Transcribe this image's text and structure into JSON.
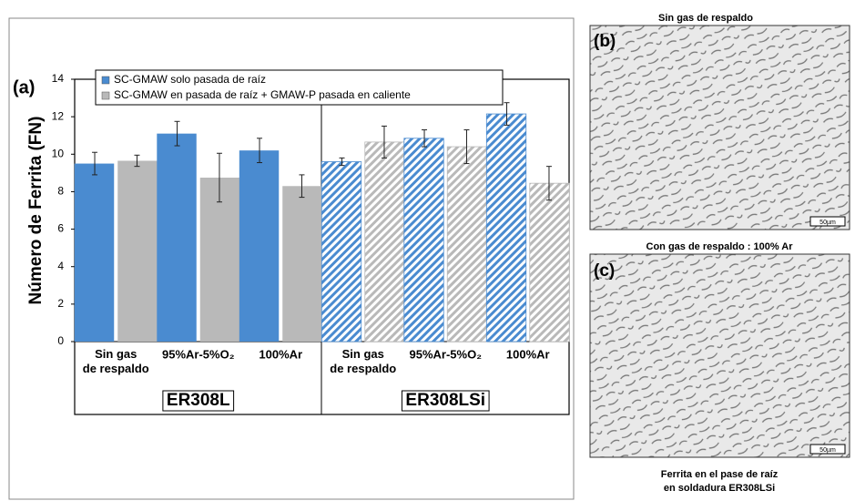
{
  "chart_data": {
    "type": "bar",
    "panel_label": "(a)",
    "ylabel": "Número de Ferrita (FN)",
    "categories": [
      "Sin gas de respaldo",
      "95%Ar-5%O₂",
      "100%Ar",
      "Sin gas de respaldo",
      "95%Ar-5%O₂",
      "100%Ar"
    ],
    "groups": [
      {
        "name": "ER308L",
        "hatched": false
      },
      {
        "name": "ER308LSi",
        "hatched": true
      }
    ],
    "series": [
      {
        "name": "SC-GMAW solo pasada de raíz",
        "color": "#4a8bd0",
        "values": [
          9.5,
          11.1,
          10.2,
          9.6,
          10.85,
          12.15
        ],
        "errors": [
          0.6,
          0.65,
          0.65,
          0.2,
          0.45,
          0.6
        ]
      },
      {
        "name": "SC-GMAW en pasada de raíz + GMAW-P pasada en caliente",
        "color": "#b9b9b9",
        "values": [
          9.65,
          8.75,
          8.3,
          10.65,
          10.4,
          8.45
        ],
        "errors": [
          0.3,
          1.3,
          0.6,
          0.85,
          0.9,
          0.9
        ]
      }
    ],
    "ylim": [
      0,
      14
    ],
    "yticks": [
      0,
      2,
      4,
      6,
      8,
      10,
      12,
      14
    ],
    "legend": "top"
  },
  "panels": [
    {
      "title": "Sin gas de respaldo",
      "label": "(b)",
      "scale": "50µm"
    },
    {
      "title": "Con gas de respaldo : 100% Ar",
      "label": "(c)",
      "scale": "50µm"
    }
  ],
  "caption": [
    "Ferrita en el pase de raíz",
    "en soldadura ER308LSi"
  ]
}
